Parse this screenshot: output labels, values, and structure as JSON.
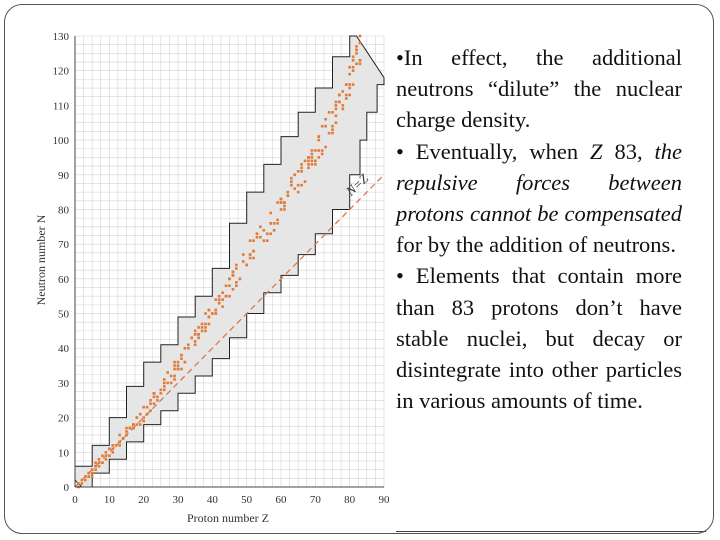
{
  "chart_data": {
    "type": "scatter",
    "xlabel": "Proton number Z",
    "ylabel": "Neutron number N",
    "xlim": [
      0,
      90
    ],
    "ylim": [
      0,
      130
    ],
    "xticks": [
      0,
      10,
      20,
      30,
      40,
      50,
      60,
      70,
      80,
      90
    ],
    "yticks": [
      0,
      10,
      20,
      30,
      40,
      50,
      60,
      70,
      80,
      90,
      100,
      110,
      120,
      130
    ],
    "grid": true,
    "annotation": "N=Z",
    "reference_line": {
      "label": "N=Z",
      "x": [
        0,
        90
      ],
      "y": [
        0,
        90
      ],
      "style": "dashed"
    },
    "band_upper": [
      [
        0,
        2
      ],
      [
        5,
        6
      ],
      [
        10,
        12
      ],
      [
        15,
        20
      ],
      [
        20,
        29
      ],
      [
        25,
        36
      ],
      [
        30,
        41
      ],
      [
        35,
        49
      ],
      [
        40,
        55
      ],
      [
        45,
        63
      ],
      [
        50,
        76
      ],
      [
        55,
        85
      ],
      [
        60,
        93
      ],
      [
        65,
        101
      ],
      [
        70,
        108
      ],
      [
        75,
        115
      ],
      [
        80,
        124
      ],
      [
        82,
        130
      ]
    ],
    "band_lower": [
      [
        2,
        0
      ],
      [
        5,
        4
      ],
      [
        10,
        8
      ],
      [
        15,
        13
      ],
      [
        20,
        18
      ],
      [
        25,
        22
      ],
      [
        30,
        27
      ],
      [
        35,
        32
      ],
      [
        40,
        37
      ],
      [
        45,
        43
      ],
      [
        50,
        50
      ],
      [
        55,
        56
      ],
      [
        60,
        61
      ],
      [
        65,
        67
      ],
      [
        70,
        73
      ],
      [
        75,
        80
      ],
      [
        80,
        90
      ],
      [
        83,
        100
      ],
      [
        85,
        108
      ],
      [
        88,
        116
      ],
      [
        90,
        118
      ]
    ],
    "stable_trend": [
      [
        1,
        0
      ],
      [
        10,
        10
      ],
      [
        20,
        21
      ],
      [
        30,
        35
      ],
      [
        40,
        50
      ],
      [
        50,
        66
      ],
      [
        60,
        80
      ],
      [
        70,
        96
      ],
      [
        80,
        117
      ],
      [
        83,
        126
      ]
    ],
    "colors": {
      "stable_points": "#e07b39",
      "band_fill": "#e6e6e6",
      "reference_line": "#d97a4a",
      "band_edge": "#222222"
    }
  },
  "text_panel": {
    "p1": "•In effect, the additional neutrons “dilute” the nuclear charge density.",
    "p2_a": "• Eventually, when ",
    "p2_z": "Z",
    "p2_b": " 83, ",
    "p2_italic": "the repulsive forces between protons cannot be compensated",
    "p2_c": " for by the addition of neutrons.",
    "p3": "• Elements that contain more than 83 protons don’t have stable nuclei, but decay or disintegrate into other particles in various amounts of time."
  }
}
